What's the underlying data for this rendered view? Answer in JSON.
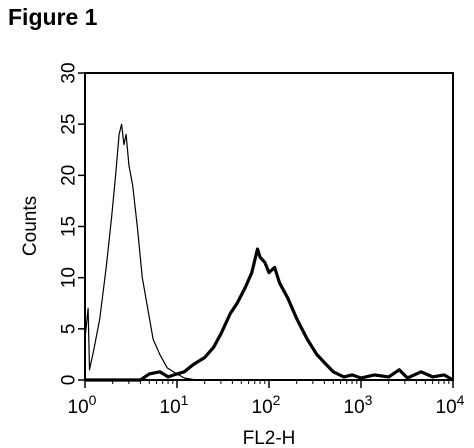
{
  "figure_label": "Figure 1",
  "chart_data": {
    "type": "line",
    "xlabel": "FL2-H",
    "ylabel": "Counts",
    "x_scale": "log",
    "xlim": [
      1,
      10000
    ],
    "ylim": [
      0,
      30
    ],
    "y_ticks": [
      "0",
      "5",
      "10",
      "15",
      "20",
      "25",
      "30"
    ],
    "x_ticks": [
      {
        "value": 1,
        "base": "10",
        "exp": "0"
      },
      {
        "value": 10,
        "base": "10",
        "exp": "1"
      },
      {
        "value": 100,
        "base": "10",
        "exp": "2"
      },
      {
        "value": 1000,
        "base": "10",
        "exp": "3"
      },
      {
        "value": 10000,
        "base": "10",
        "exp": "4"
      }
    ],
    "grid": false,
    "series": [
      {
        "style": "thin",
        "color": "#000000",
        "points": [
          [
            1.0,
            4
          ],
          [
            1.08,
            7
          ],
          [
            1.12,
            1
          ],
          [
            1.25,
            3
          ],
          [
            1.45,
            6
          ],
          [
            1.7,
            11
          ],
          [
            1.95,
            16
          ],
          [
            2.15,
            20
          ],
          [
            2.35,
            24
          ],
          [
            2.5,
            25
          ],
          [
            2.65,
            23
          ],
          [
            2.8,
            24
          ],
          [
            3.0,
            21
          ],
          [
            3.3,
            19
          ],
          [
            3.7,
            15
          ],
          [
            4.2,
            10
          ],
          [
            4.8,
            7
          ],
          [
            5.5,
            4
          ],
          [
            6.5,
            2.5
          ],
          [
            7.8,
            1.2
          ],
          [
            9.5,
            0.7
          ],
          [
            12,
            0.2
          ],
          [
            16,
            0
          ]
        ]
      },
      {
        "style": "thick",
        "color": "#000000",
        "points": [
          [
            1.0,
            0
          ],
          [
            4.0,
            0
          ],
          [
            5.0,
            0.6
          ],
          [
            6.5,
            0.8
          ],
          [
            8.0,
            0.3
          ],
          [
            10,
            0.6
          ],
          [
            12,
            0.8
          ],
          [
            15,
            1.5
          ],
          [
            20,
            2.2
          ],
          [
            25,
            3.2
          ],
          [
            30,
            4.5
          ],
          [
            38,
            6.5
          ],
          [
            45,
            7.5
          ],
          [
            55,
            9
          ],
          [
            65,
            10.5
          ],
          [
            75,
            12.8
          ],
          [
            80,
            12
          ],
          [
            90,
            11.5
          ],
          [
            100,
            10.5
          ],
          [
            115,
            11
          ],
          [
            130,
            9.5
          ],
          [
            160,
            8
          ],
          [
            200,
            6
          ],
          [
            260,
            4
          ],
          [
            330,
            2.5
          ],
          [
            420,
            1.5
          ],
          [
            500,
            0.8
          ],
          [
            650,
            0.3
          ],
          [
            800,
            0.5
          ],
          [
            1000,
            0.2
          ],
          [
            1400,
            0.5
          ],
          [
            2000,
            0.3
          ],
          [
            2600,
            1
          ],
          [
            3200,
            0.2
          ],
          [
            4500,
            0.8
          ],
          [
            6000,
            0.3
          ],
          [
            8000,
            0.5
          ],
          [
            10000,
            0
          ]
        ]
      }
    ]
  }
}
